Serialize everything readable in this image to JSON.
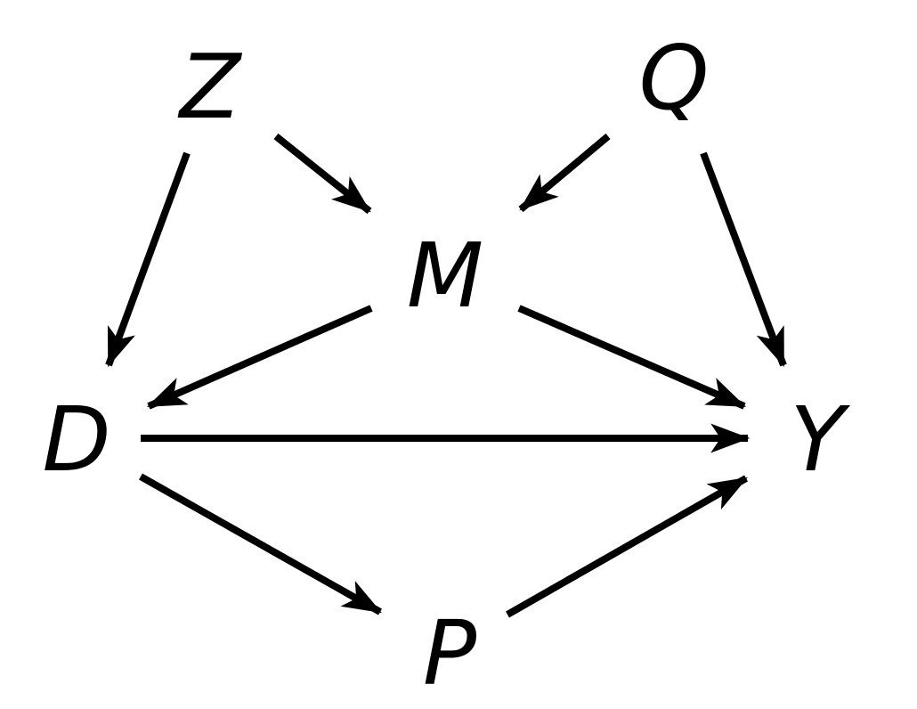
{
  "diagram": {
    "type": "directed-acyclic-graph",
    "nodes": [
      {
        "id": "Z",
        "label": "Z"
      },
      {
        "id": "Q",
        "label": "Q"
      },
      {
        "id": "M",
        "label": "M"
      },
      {
        "id": "D",
        "label": "D"
      },
      {
        "id": "Y",
        "label": "Y"
      },
      {
        "id": "P",
        "label": "P"
      }
    ],
    "edges": [
      {
        "from": "Z",
        "to": "D"
      },
      {
        "from": "Z",
        "to": "M"
      },
      {
        "from": "Q",
        "to": "M"
      },
      {
        "from": "Q",
        "to": "Y"
      },
      {
        "from": "M",
        "to": "D"
      },
      {
        "from": "M",
        "to": "Y"
      },
      {
        "from": "D",
        "to": "Y"
      },
      {
        "from": "D",
        "to": "P"
      },
      {
        "from": "P",
        "to": "Y"
      }
    ],
    "colors": {
      "stroke": "#000000",
      "text": "#000000",
      "background": "#ffffff"
    }
  }
}
